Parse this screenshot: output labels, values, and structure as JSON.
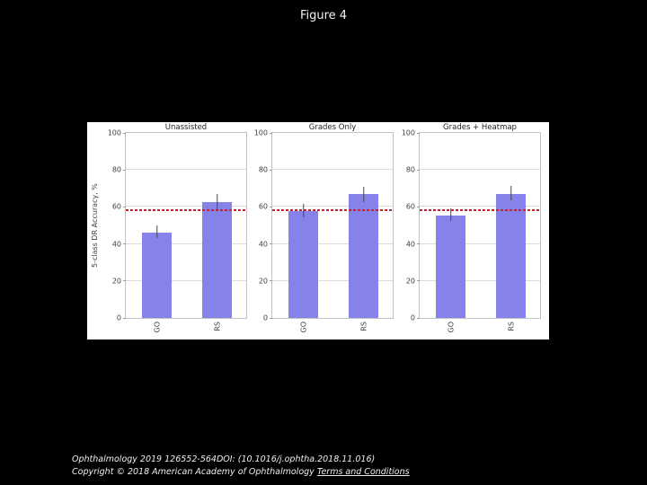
{
  "slide": {
    "title": "Figure 4",
    "background": "#000000"
  },
  "figure": {
    "ylabel": "5-class DR Accuracy, %",
    "colors": {
      "bar": "#8583e9",
      "baseline": "#c1232f",
      "error": "#46484f",
      "grid": "#dcdcdc",
      "spine": "#c2c2c2",
      "panel": "#ffffff",
      "tickText": "#3f3f3f"
    }
  },
  "chart_data": [
    {
      "type": "bar",
      "title": "Unassisted",
      "categories": [
        "GO",
        "RS"
      ],
      "values": [
        46.2,
        62.5
      ],
      "error_low": [
        43.0,
        58.5
      ],
      "error_high": [
        49.8,
        66.8
      ],
      "baseline": 58.4,
      "ylabel": "5-class DR Accuracy, %",
      "ylim": [
        0,
        100
      ],
      "yticks": [
        0,
        20,
        40,
        60,
        80,
        100
      ],
      "grid": true,
      "legend_position": "none"
    },
    {
      "type": "bar",
      "title": "Grades Only",
      "categories": [
        "GO",
        "RS"
      ],
      "values": [
        58.0,
        66.8
      ],
      "error_low": [
        54.2,
        62.6
      ],
      "error_high": [
        61.5,
        70.9
      ],
      "baseline": 58.4,
      "ylabel": "",
      "ylim": [
        0,
        100
      ],
      "yticks": [
        0,
        20,
        40,
        60,
        80,
        100
      ],
      "grid": true,
      "legend_position": "none"
    },
    {
      "type": "bar",
      "title": "Grades + Heatmap",
      "categories": [
        "GO",
        "RS"
      ],
      "values": [
        55.5,
        66.8
      ],
      "error_low": [
        52.5,
        63.4
      ],
      "error_high": [
        59.0,
        71.2
      ],
      "baseline": 58.4,
      "ylabel": "",
      "ylim": [
        0,
        100
      ],
      "yticks": [
        0,
        20,
        40,
        60,
        80,
        100
      ],
      "grid": true,
      "legend_position": "none"
    }
  ],
  "footer": {
    "citation": "Ophthalmology 2019 126552-564DOI: (10.1016/j.ophtha.2018.11.016)",
    "copyright": "Copyright © 2018 American Academy of Ophthalmology ",
    "terms_label": "Terms and Conditions"
  }
}
